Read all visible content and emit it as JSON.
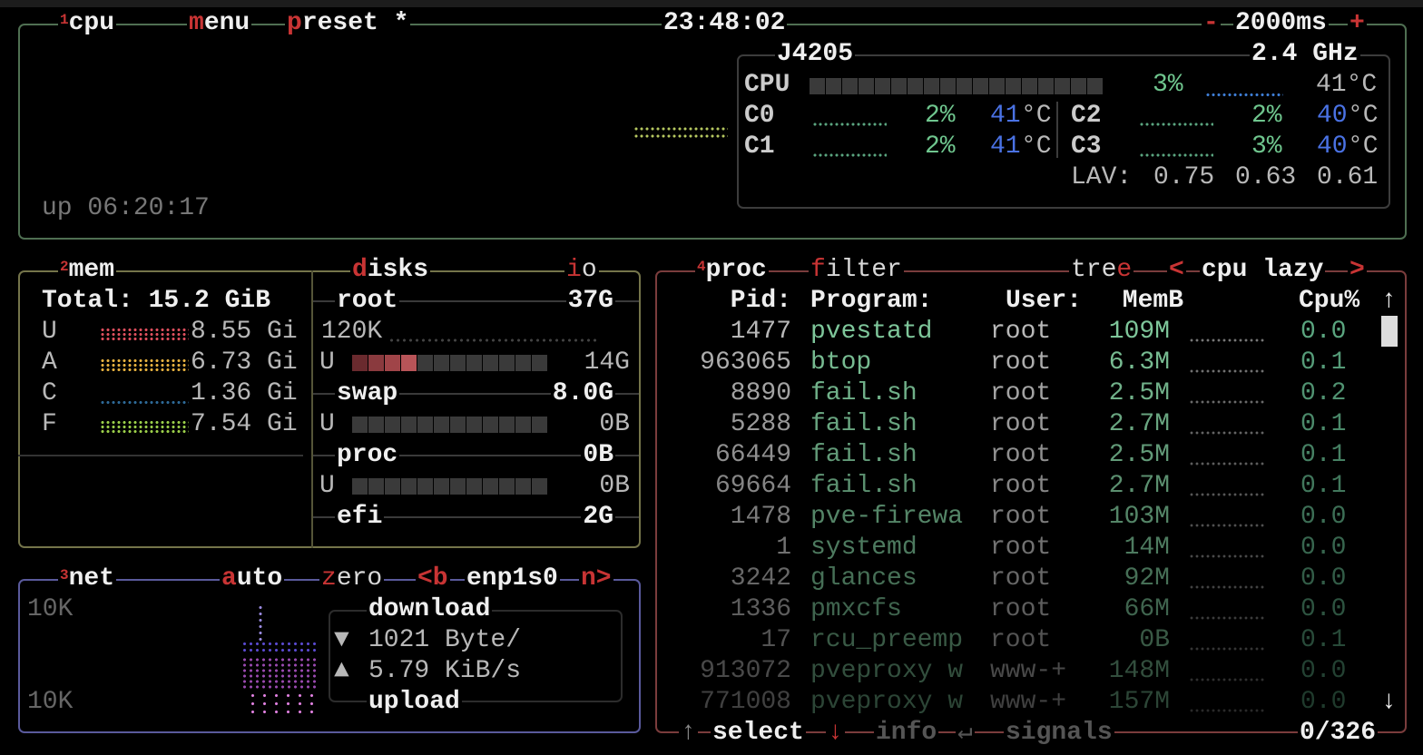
{
  "cpu": {
    "num": "1",
    "title": "cpu",
    "menu": {
      "key": "m",
      "rest": "enu"
    },
    "preset": {
      "key": "p",
      "rest": "reset *"
    },
    "clock": "23:48:02",
    "interval": {
      "minus": "-",
      "value": "2000ms",
      "plus": "+"
    },
    "uptime": "up 06:20:17",
    "model": "J4205",
    "freq": "2.4 GHz",
    "total": {
      "label": "CPU",
      "pct": "3%",
      "temp": "41°C",
      "usage": 0.03
    },
    "cores": [
      {
        "label": "C0",
        "pct": "2%",
        "temp": "41",
        "unit": "°C"
      },
      {
        "label": "C1",
        "pct": "2%",
        "temp": "41",
        "unit": "°C"
      },
      {
        "label": "C2",
        "pct": "2%",
        "temp": "40",
        "unit": "°C"
      },
      {
        "label": "C3",
        "pct": "3%",
        "temp": "40",
        "unit": "°C"
      }
    ],
    "lav": {
      "label": "LAV:",
      "values": [
        "0.75",
        "0.63",
        "0.61"
      ]
    },
    "colors": {
      "border": "#4f6f52",
      "inner_border": "#3c3c3c",
      "graph": "#b6c860"
    }
  },
  "mem": {
    "num": "2",
    "title": "mem",
    "total": "Total: 15.2 GiB",
    "rows": [
      {
        "label": "U",
        "value": "8.55 Gi",
        "color": "#e0505e"
      },
      {
        "label": "A",
        "value": "6.73 Gi",
        "color": "#e8b340"
      },
      {
        "label": "C",
        "value": "1.36 Gi",
        "color": "#2e6a98"
      },
      {
        "label": "F",
        "value": "7.54 Gi",
        "color": "#9cd04a"
      }
    ],
    "border": "#74744a"
  },
  "disks": {
    "title": {
      "key": "d",
      "rest": "isks"
    },
    "io": {
      "key": "i",
      "rest": "o"
    },
    "items": [
      {
        "name": "root",
        "size": "37G",
        "io": "120K",
        "used_label": "U",
        "used": "14G",
        "used_fraction": 0.33
      },
      {
        "name": "swap",
        "size": "8.0G",
        "used_label": "U",
        "used": "0B",
        "used_fraction": 0
      },
      {
        "name": "proc",
        "size": "0B",
        "used_label": "U",
        "used": "0B",
        "used_fraction": 0
      },
      {
        "name": "efi",
        "size": "2G"
      }
    ],
    "bar_colors": [
      "#6a2a2e",
      "#8a3a3e",
      "#a04448",
      "#b85458"
    ]
  },
  "net": {
    "num": "3",
    "title": "net",
    "auto": {
      "key": "a",
      "rest": "uto"
    },
    "zero": {
      "key": "z",
      "rest": "ero"
    },
    "prev": "<b",
    "iface": "enp1s0",
    "next": "n>",
    "scale_top": "10K",
    "scale_bottom": "10K",
    "download_label": "download",
    "download_icon": "▼",
    "download": "1021 Byte/",
    "upload_icon": "▲",
    "upload": "5.79 KiB/s",
    "upload_label": "upload",
    "border": "#5a5a9c"
  },
  "proc": {
    "num": "4",
    "title": "proc",
    "filter": {
      "key": "f",
      "rest": "ilter"
    },
    "tree": {
      "rest": "tre",
      "key": "e"
    },
    "sort_prev": "<",
    "sort": "cpu lazy",
    "sort_next": ">",
    "headers": {
      "pid": "Pid:",
      "program": "Program:",
      "user": "User:",
      "mem": "MemB",
      "cpu": "Cpu%"
    },
    "rows": [
      {
        "pid": "1477",
        "program": "pvestatd",
        "user": "root",
        "mem": "109M",
        "cpu": "0.0"
      },
      {
        "pid": "963065",
        "program": "btop",
        "user": "root",
        "mem": "6.3M",
        "cpu": "0.1"
      },
      {
        "pid": "8890",
        "program": "fail.sh",
        "user": "root",
        "mem": "2.5M",
        "cpu": "0.2"
      },
      {
        "pid": "5288",
        "program": "fail.sh",
        "user": "root",
        "mem": "2.7M",
        "cpu": "0.1"
      },
      {
        "pid": "66449",
        "program": "fail.sh",
        "user": "root",
        "mem": "2.5M",
        "cpu": "0.1"
      },
      {
        "pid": "69664",
        "program": "fail.sh",
        "user": "root",
        "mem": "2.7M",
        "cpu": "0.1"
      },
      {
        "pid": "1478",
        "program": "pve-firewa",
        "user": "root",
        "mem": "103M",
        "cpu": "0.0"
      },
      {
        "pid": "1",
        "program": "systemd",
        "user": "root",
        "mem": "14M",
        "cpu": "0.0"
      },
      {
        "pid": "3242",
        "program": "glances",
        "user": "root",
        "mem": "92M",
        "cpu": "0.0"
      },
      {
        "pid": "1336",
        "program": "pmxcfs",
        "user": "root",
        "mem": "66M",
        "cpu": "0.0"
      },
      {
        "pid": "17",
        "program": "rcu_preemp",
        "user": "root",
        "mem": "0B",
        "cpu": "0.1"
      },
      {
        "pid": "913072",
        "program": "pveproxy w",
        "user": "www-+",
        "mem": "148M",
        "cpu": "0.0"
      },
      {
        "pid": "771008",
        "program": "pveproxy w",
        "user": "www-+",
        "mem": "157M",
        "cpu": "0.0"
      }
    ],
    "scroll_up": "↑",
    "scroll_down": "↓",
    "footer": {
      "up": "↑",
      "select": "select",
      "down": "↓",
      "info": "info",
      "enter": "↵",
      "signals": "signals",
      "count": "0/326"
    },
    "border": "#7a3c3c"
  }
}
